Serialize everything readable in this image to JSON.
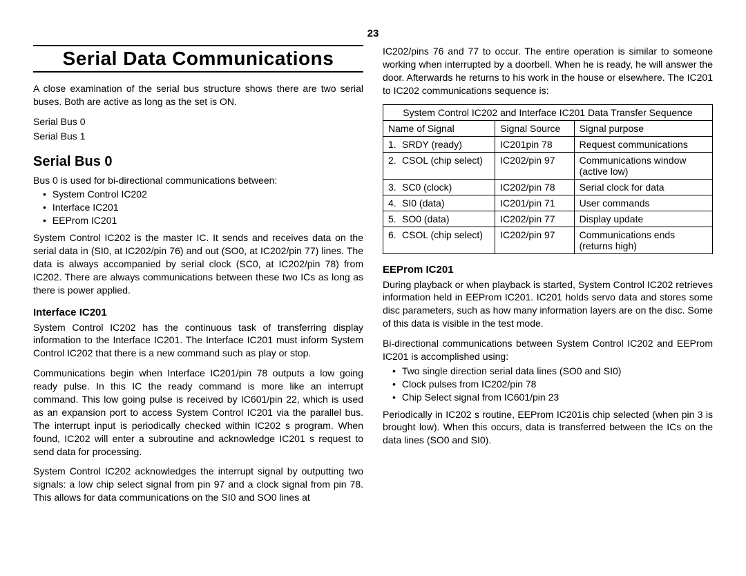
{
  "page_number": "23",
  "main_title": "Serial Data Communications",
  "left": {
    "intro": "A close examination of the serial bus structure shows there are two serial buses.  Both are active as long as the set is ON.",
    "bus_lines": [
      "Serial Bus 0",
      "Serial Bus 1"
    ],
    "h2": "Serial Bus 0",
    "bus0_intro": "Bus 0 is used for bi-directional communications between:",
    "bus0_bullets": [
      "System Control IC202",
      "Interface IC201",
      "EEProm IC201"
    ],
    "bus0_para": "System Control IC202 is the master IC.  It sends and receives data on the serial data in (SI0, at IC202/pin 76) and out (SO0, at IC202/pin 77) lines.  The data is always accompanied by serial clock (SC0, at IC202/pin 78) from IC202.  There are always communications between these two ICs as long as there is power applied.",
    "h3_interface": "Interface IC201",
    "interface_p1": "System Control IC202 has the continuous task of transferring display information to the Interface IC201.  The Interface IC201 must inform System Control IC202 that there is a new command such as play or stop.",
    "interface_p2": "Communications begin when Interface IC201/pin 78 outputs a low going  ready  pulse.  In this IC the ready command is more like an interrupt command.  This low going pulse is received by IC601/pin 22, which is used as an expansion port to access System Control IC201 via the parallel bus. The interrupt input is periodically checked within IC202 s program.  When found, IC202 will enter a subroutine and acknowledge IC201 s request to send data for processing.",
    "interface_p3": "System Control IC202 acknowledges the interrupt signal by outputting two signals: a low chip select signal from pin 97 and a clock signal from pin 78.  This allows for data communications on the SI0 and SO0 lines at"
  },
  "right": {
    "top_para": "IC202/pins 76 and 77 to occur.  The entire operation is similar to someone working when interrupted by a doorbell.  When he is ready, he will answer the door.  Afterwards he returns to his work in the house or elsewhere.  The IC201 to IC202 communications sequence is:",
    "table": {
      "title": "System Control IC202 and Interface IC201 Data Transfer Sequence",
      "headers": [
        "Name of Signal",
        "Signal Source",
        "Signal purpose"
      ],
      "rows": [
        {
          "num": "1.",
          "name": "SRDY (ready)",
          "src": "IC201pin 78",
          "purpose": "Request communications"
        },
        {
          "num": "2.",
          "name": "CSOL (chip select)",
          "src": "IC202/pin 97",
          "purpose": "Communications window (active low)"
        },
        {
          "num": "3.",
          "name": "SC0 (clock)",
          "src": "IC202/pin 78",
          "purpose": "Serial clock for data"
        },
        {
          "num": "4.",
          "name": "SI0 (data)",
          "src": "IC201/pin 71",
          "purpose": "User commands"
        },
        {
          "num": "5.",
          "name": "SO0 (data)",
          "src": "IC202/pin 77",
          "purpose": "Display update"
        },
        {
          "num": "6.",
          "name": "CSOL (chip select)",
          "src": "IC202/pin 97",
          "purpose": "Communications ends (returns high)"
        }
      ]
    },
    "h3_eeprom": "EEProm IC201",
    "eeprom_p1": "During playback or when playback is started, System Control IC202 retrieves information held in EEProm IC201.  IC201 holds servo data and stores some disc parameters, such as how many information layers are on the disc.  Some of this data is visible in the test mode.",
    "eeprom_p2": "Bi-directional communications between System Control IC202 and EEProm IC201 is accomplished using:",
    "eeprom_bullets": [
      "Two single direction serial data lines (SO0 and SI0)",
      "Clock pulses from IC202/pin 78",
      "Chip Select signal from IC601/pin 23"
    ],
    "eeprom_p3": "Periodically in IC202 s routine, EEProm IC201is chip selected (when pin 3 is brought low). When this occurs, data is transferred between the ICs on the data lines (SO0 and SI0)."
  }
}
